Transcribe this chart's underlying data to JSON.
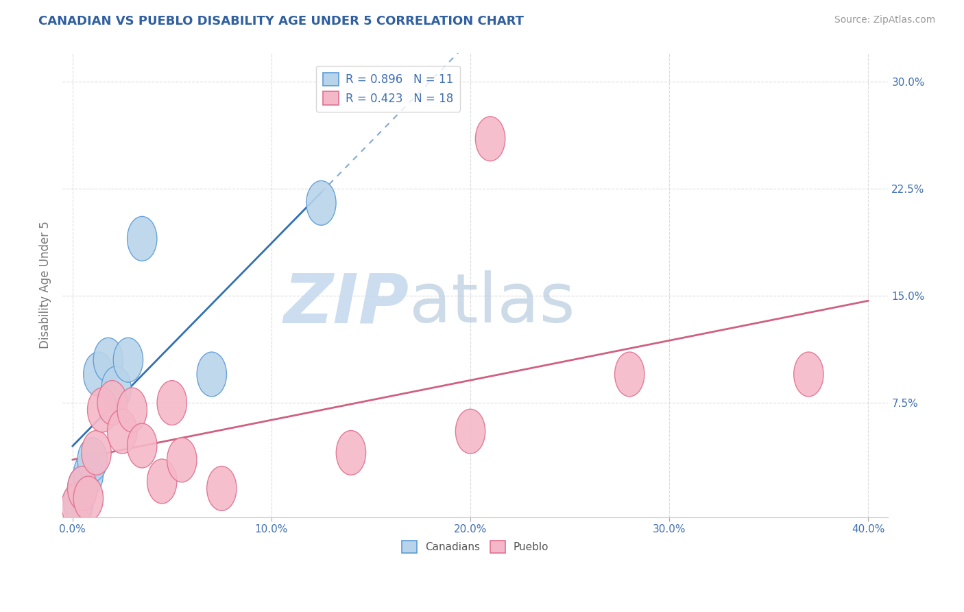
{
  "title": "CANADIAN VS PUEBLO DISABILITY AGE UNDER 5 CORRELATION CHART",
  "source": "Source: ZipAtlas.com",
  "ylabel": "Disability Age Under 5",
  "x_tick_vals": [
    0.0,
    10.0,
    20.0,
    30.0,
    40.0
  ],
  "y_tick_vals": [
    7.5,
    15.0,
    22.5,
    30.0
  ],
  "y_tick_labels": [
    "7.5%",
    "15.0%",
    "22.5%",
    "30.0%"
  ],
  "xlim": [
    -0.5,
    41
  ],
  "ylim": [
    -0.5,
    32
  ],
  "canadians_R": "0.896",
  "canadians_N": "11",
  "pueblo_R": "0.423",
  "pueblo_N": "18",
  "blue_fill": "#b8d4ea",
  "blue_edge": "#5b9bd5",
  "pink_fill": "#f4b8c8",
  "pink_edge": "#e07090",
  "blue_line_color": "#3070b0",
  "pink_line_color": "#d06080",
  "title_color": "#3060a0",
  "label_color": "#4070b0",
  "grid_color": "#d8d8d8",
  "bg_color": "#ffffff",
  "canadians_x": [
    0.3,
    0.5,
    0.8,
    1.0,
    1.3,
    1.8,
    2.2,
    2.8,
    3.5,
    7.0,
    12.5
  ],
  "canadians_y": [
    0.5,
    1.5,
    2.5,
    3.5,
    9.5,
    10.5,
    8.5,
    10.5,
    19.0,
    9.5,
    21.5
  ],
  "pueblo_x": [
    0.2,
    0.5,
    0.8,
    1.2,
    1.5,
    2.0,
    2.5,
    3.0,
    3.5,
    4.5,
    5.5,
    7.5,
    14.0,
    20.0,
    21.0,
    28.0,
    37.0,
    5.0
  ],
  "pueblo_y": [
    0.3,
    1.5,
    0.8,
    4.0,
    7.0,
    7.5,
    5.5,
    7.0,
    4.5,
    2.0,
    3.5,
    1.5,
    4.0,
    5.5,
    26.0,
    9.5,
    9.5,
    7.5
  ],
  "legend_labels": [
    "Canadians",
    "Pueblo"
  ],
  "watermark_zip_color": "#c5d8ee",
  "watermark_atlas_color": "#b8cce0"
}
